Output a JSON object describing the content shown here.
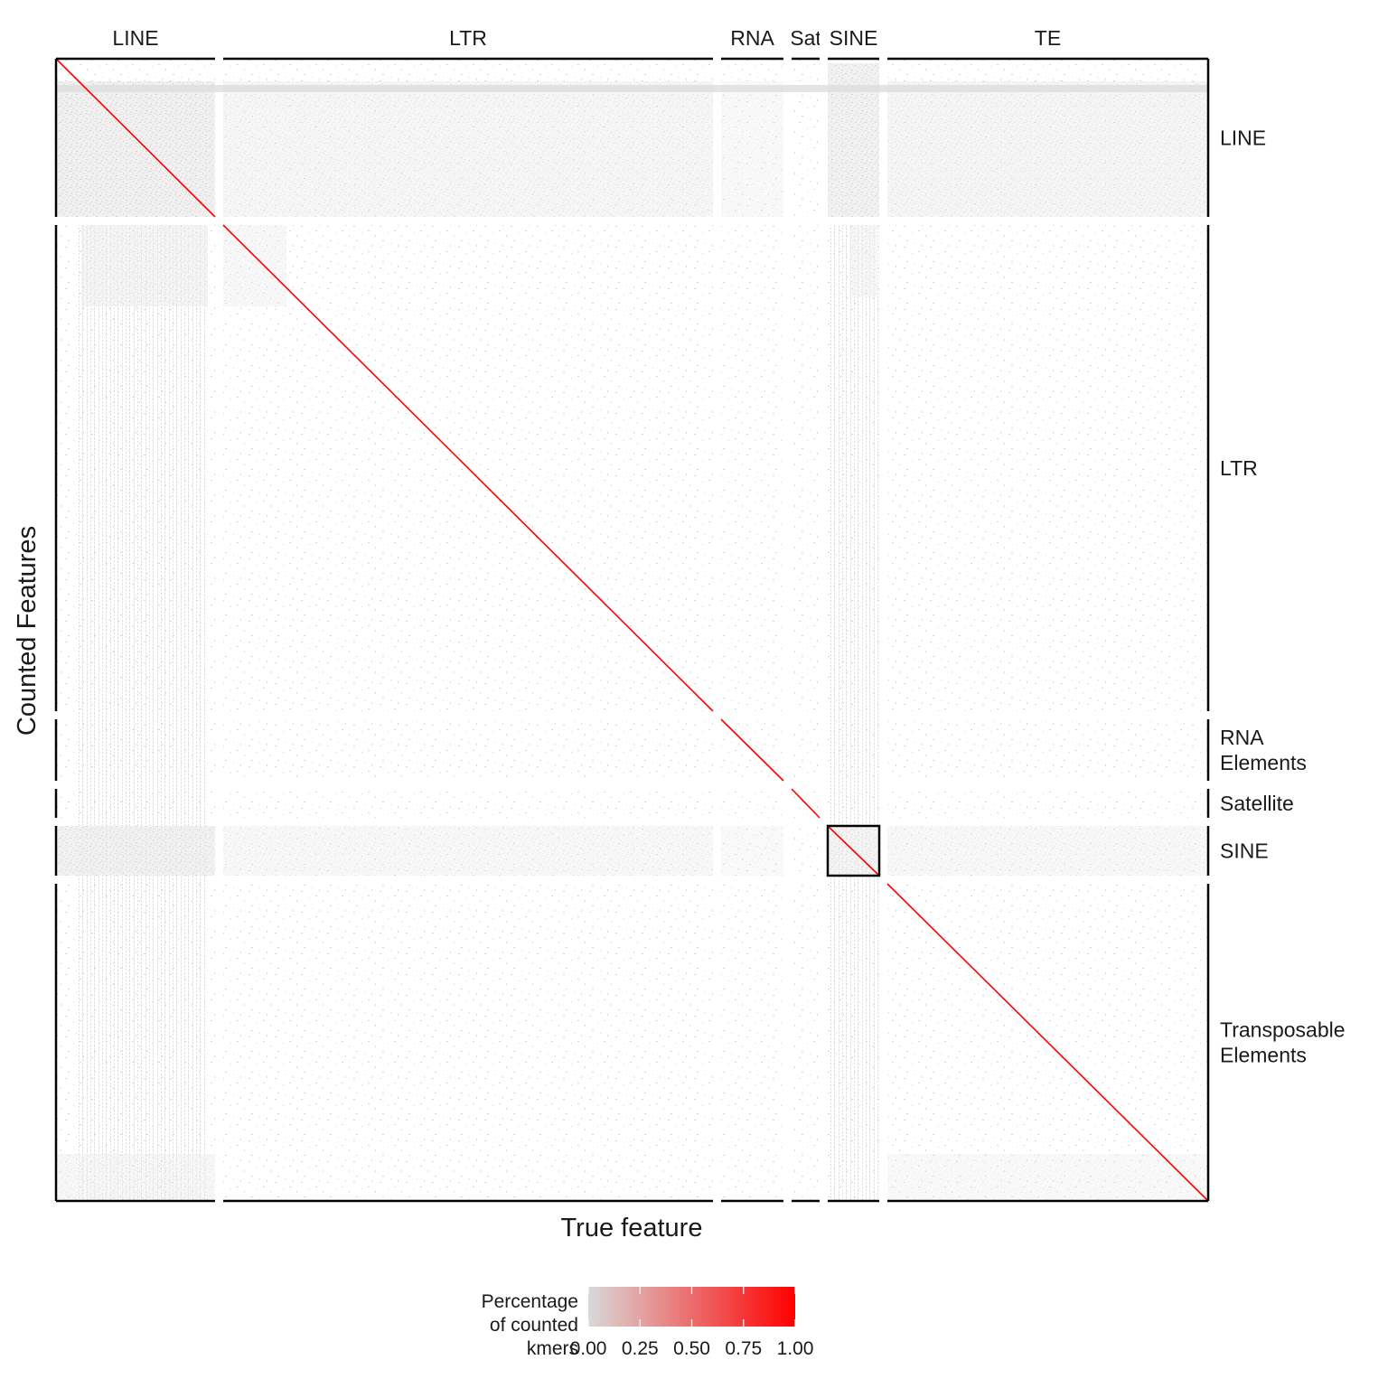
{
  "chart_data": {
    "type": "heatmap",
    "title": "",
    "xlabel": "True feature",
    "ylabel": "Counted Features",
    "column_facets": [
      "LINE",
      "LTR",
      "RNA",
      "Sat",
      "SINE",
      "TE"
    ],
    "row_facets": [
      "LINE",
      "LTR",
      "RNA Elements",
      "Satellite",
      "SINE",
      "Transposable Elements"
    ],
    "highlighted_cell": {
      "column": "SINE",
      "row": "SINE"
    },
    "diagonal_value": 1.0,
    "off_diagonal_value": 0.0,
    "legend": {
      "title": "Percentage of counted kmers",
      "title_lines": [
        "Percentage",
        "of counted",
        "kmers"
      ],
      "range": [
        0,
        1
      ],
      "ticks": [
        "0.00",
        "0.25",
        "0.50",
        "0.75",
        "1.00"
      ],
      "low_color": "#d9d9d9",
      "high_color": "#ff0000",
      "position": "bottom"
    },
    "grid": false
  }
}
